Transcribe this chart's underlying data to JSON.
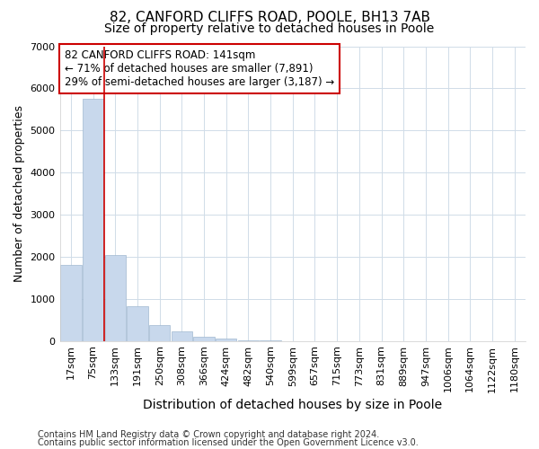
{
  "title1": "82, CANFORD CLIFFS ROAD, POOLE, BH13 7AB",
  "title2": "Size of property relative to detached houses in Poole",
  "xlabel": "Distribution of detached houses by size in Poole",
  "ylabel": "Number of detached properties",
  "categories": [
    "17sqm",
    "75sqm",
    "133sqm",
    "191sqm",
    "250sqm",
    "308sqm",
    "366sqm",
    "424sqm",
    "482sqm",
    "540sqm",
    "599sqm",
    "657sqm",
    "715sqm",
    "773sqm",
    "831sqm",
    "889sqm",
    "947sqm",
    "1006sqm",
    "1064sqm",
    "1122sqm",
    "1180sqm"
  ],
  "values": [
    1800,
    5750,
    2050,
    820,
    370,
    230,
    100,
    50,
    15,
    5,
    2,
    0,
    2,
    0,
    0,
    0,
    0,
    0,
    0,
    0,
    0
  ],
  "bar_color": "#c8d8ec",
  "bar_edge_color": "#a0b8d0",
  "vline_x_index": 2,
  "vline_color": "#cc0000",
  "annotation_text": "82 CANFORD CLIFFS ROAD: 141sqm\n← 71% of detached houses are smaller (7,891)\n29% of semi-detached houses are larger (3,187) →",
  "annotation_box_color": "#ffffff",
  "annotation_box_edge": "#cc0000",
  "ylim": [
    0,
    7000
  ],
  "yticks": [
    0,
    1000,
    2000,
    3000,
    4000,
    5000,
    6000,
    7000
  ],
  "footer1": "Contains HM Land Registry data © Crown copyright and database right 2024.",
  "footer2": "Contains public sector information licensed under the Open Government Licence v3.0.",
  "bg_color": "#ffffff",
  "plot_bg_color": "#ffffff",
  "grid_color": "#d0dce8",
  "title1_fontsize": 11,
  "title2_fontsize": 10,
  "xlabel_fontsize": 10,
  "ylabel_fontsize": 9,
  "tick_fontsize": 8,
  "footer_fontsize": 7
}
